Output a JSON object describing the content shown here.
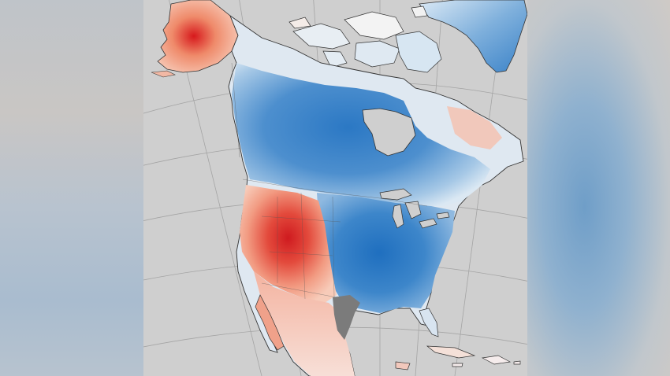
{
  "image": {
    "subject": "",
    "colors": {
      "background": "#cfcfcf",
      "ocean": "#cfcfcf",
      "warm_strong": "#d7191c",
      "warm_mid": "#ef8a6a",
      "warm_light": "#f7cbb9",
      "neutral": "#f2f2f2",
      "cool_light": "#c7ddef",
      "cool_mid": "#6fa8d8",
      "cool_strong": "#1f6fbf",
      "no_data": "#7b7b7b",
      "coastline": "#333333",
      "graticule": "#9a9a9a"
    }
  }
}
